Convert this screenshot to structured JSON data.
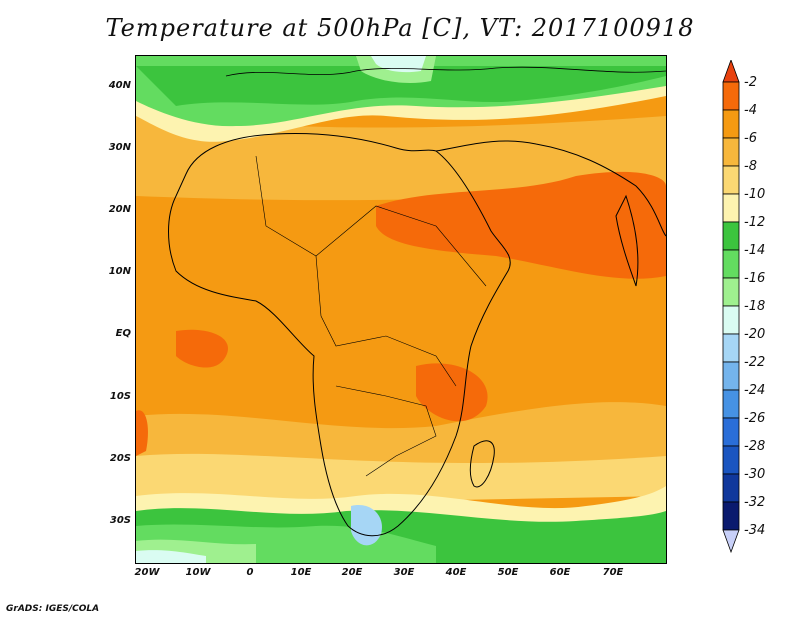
{
  "title": "Temperature at 500hPa [C], VT: 2017100918",
  "credit": "GrADS: IGES/COLA",
  "lat_labels": [
    "40N",
    "30N",
    "20N",
    "10N",
    "EQ",
    "10S",
    "20S",
    "30S"
  ],
  "lon_labels": [
    "20W",
    "10W",
    "0",
    "10E",
    "20E",
    "30E",
    "40E",
    "50E",
    "60E",
    "70E"
  ],
  "colorbar": {
    "labels": [
      "-2",
      "-4",
      "-6",
      "-8",
      "-10",
      "-12",
      "-14",
      "-16",
      "-18",
      "-20",
      "-22",
      "-24",
      "-26",
      "-28",
      "-30",
      "-32",
      "-34"
    ],
    "colors": [
      "#e8420f",
      "#f56a0a",
      "#f59a12",
      "#f7b73c",
      "#fbd873",
      "#fdf3b0",
      "#3cc43e",
      "#63dc60",
      "#9ff08f",
      "#dafcf2",
      "#a6d6f5",
      "#74b4ec",
      "#4692e4",
      "#2a6ed8",
      "#1a55c0",
      "#10389c",
      "#0a1a6e",
      "#c8d0f8"
    ]
  },
  "map_legend": {
    "projection": "lat-lon",
    "extent": {
      "lon": [
        -23,
        80
      ],
      "lat": [
        -37,
        45
      ]
    }
  }
}
